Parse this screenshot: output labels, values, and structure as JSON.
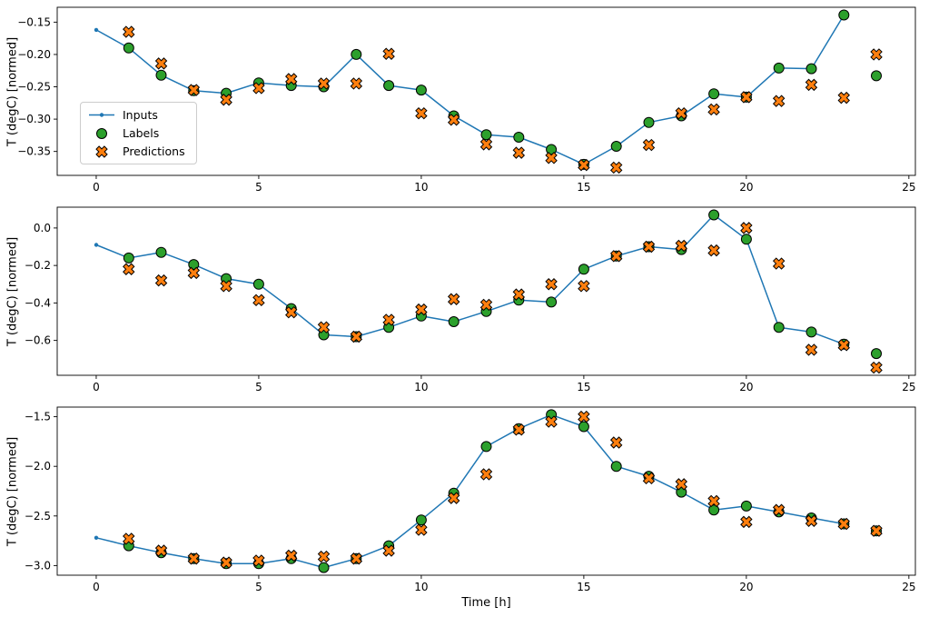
{
  "figure": {
    "xlabel": "Time [h]"
  },
  "legend": {
    "items": [
      {
        "label": "Inputs"
      },
      {
        "label": "Labels"
      },
      {
        "label": "Predictions"
      }
    ]
  },
  "chart_data": {
    "type": "line",
    "subtype": "line-with-scatter-overlays",
    "xlabel": "Time [h]",
    "legend_position": "center-left-of-first-subplot",
    "grid": false,
    "colors": {
      "inputs": "#1f77b4",
      "labels": "#2ca02c",
      "predictions": "#ff7f0e",
      "edge": "#000000"
    },
    "subplots": [
      {
        "ylabel": "T (degC) [normed]",
        "xlim": [
          -1.2,
          25.2
        ],
        "ylim": [
          -0.387,
          -0.127
        ],
        "xticks": [
          0,
          5,
          10,
          15,
          20,
          25
        ],
        "xtick_labels": [
          "0",
          "5",
          "10",
          "15",
          "20",
          "25"
        ],
        "yticks": [
          -0.15,
          -0.2,
          -0.25,
          -0.3,
          -0.35
        ],
        "ytick_labels": [
          "−0.15",
          "−0.20",
          "−0.25",
          "−0.30",
          "−0.35"
        ],
        "series": [
          {
            "name": "Inputs",
            "marker": "line-dot",
            "x": [
              0,
              1,
              2,
              3,
              4,
              5,
              6,
              7,
              8,
              9,
              10,
              11,
              12,
              13,
              14,
              15,
              16,
              17,
              18,
              19,
              20,
              21,
              22,
              23
            ],
            "y": [
              -0.162,
              -0.19,
              -0.232,
              -0.256,
              -0.26,
              -0.244,
              -0.248,
              -0.25,
              -0.2,
              -0.248,
              -0.255,
              -0.295,
              -0.324,
              -0.328,
              -0.347,
              -0.37,
              -0.342,
              -0.305,
              -0.295,
              -0.261,
              -0.266,
              -0.221,
              -0.222,
              -0.139
            ]
          },
          {
            "name": "Labels",
            "marker": "circle",
            "x": [
              1,
              2,
              3,
              4,
              5,
              6,
              7,
              8,
              9,
              10,
              11,
              12,
              13,
              14,
              15,
              16,
              17,
              18,
              19,
              20,
              21,
              22,
              23,
              24
            ],
            "y": [
              -0.19,
              -0.232,
              -0.256,
              -0.26,
              -0.244,
              -0.248,
              -0.25,
              -0.2,
              -0.248,
              -0.255,
              -0.295,
              -0.324,
              -0.328,
              -0.347,
              -0.37,
              -0.342,
              -0.305,
              -0.295,
              -0.261,
              -0.266,
              -0.221,
              -0.222,
              -0.139,
              -0.233
            ]
          },
          {
            "name": "Predictions",
            "marker": "X",
            "x": [
              1,
              2,
              3,
              4,
              5,
              6,
              7,
              8,
              9,
              10,
              11,
              12,
              13,
              14,
              15,
              16,
              17,
              18,
              19,
              20,
              21,
              22,
              23,
              24
            ],
            "y": [
              -0.165,
              -0.214,
              -0.255,
              -0.27,
              -0.252,
              -0.238,
              -0.245,
              -0.245,
              -0.199,
              -0.291,
              -0.301,
              -0.339,
              -0.352,
              -0.36,
              -0.371,
              -0.375,
              -0.34,
              -0.291,
              -0.285,
              -0.266,
              -0.272,
              -0.247,
              -0.267,
              -0.2
            ]
          }
        ]
      },
      {
        "ylabel": "T (degC) [normed]",
        "xlim": [
          -1.2,
          25.2
        ],
        "ylim": [
          -0.786,
          0.111
        ],
        "xticks": [
          0,
          5,
          10,
          15,
          20,
          25
        ],
        "xtick_labels": [
          "0",
          "5",
          "10",
          "15",
          "20",
          "25"
        ],
        "yticks": [
          0.0,
          -0.2,
          -0.4,
          -0.6
        ],
        "ytick_labels": [
          "0.0",
          "−0.2",
          "−0.4",
          "−0.6"
        ],
        "series": [
          {
            "name": "Inputs",
            "marker": "line-dot",
            "x": [
              0,
              1,
              2,
              3,
              4,
              5,
              6,
              7,
              8,
              9,
              10,
              11,
              12,
              13,
              14,
              15,
              16,
              17,
              18,
              19,
              20,
              21,
              22,
              23
            ],
            "y": [
              -0.09,
              -0.16,
              -0.13,
              -0.195,
              -0.27,
              -0.3,
              -0.43,
              -0.57,
              -0.58,
              -0.53,
              -0.47,
              -0.5,
              -0.445,
              -0.385,
              -0.395,
              -0.22,
              -0.15,
              -0.1,
              -0.115,
              0.07,
              -0.06,
              -0.53,
              -0.555,
              -0.62
            ]
          },
          {
            "name": "Labels",
            "marker": "circle",
            "x": [
              1,
              2,
              3,
              4,
              5,
              6,
              7,
              8,
              9,
              10,
              11,
              12,
              13,
              14,
              15,
              16,
              17,
              18,
              19,
              20,
              21,
              22,
              23,
              24
            ],
            "y": [
              -0.16,
              -0.13,
              -0.195,
              -0.27,
              -0.3,
              -0.43,
              -0.57,
              -0.58,
              -0.53,
              -0.47,
              -0.5,
              -0.445,
              -0.385,
              -0.395,
              -0.22,
              -0.15,
              -0.1,
              -0.115,
              0.07,
              -0.06,
              -0.53,
              -0.555,
              -0.62,
              -0.67
            ]
          },
          {
            "name": "Predictions",
            "marker": "X",
            "x": [
              1,
              2,
              3,
              4,
              5,
              6,
              7,
              8,
              9,
              10,
              11,
              12,
              13,
              14,
              15,
              16,
              17,
              18,
              19,
              20,
              21,
              22,
              23,
              24
            ],
            "y": [
              -0.22,
              -0.28,
              -0.24,
              -0.31,
              -0.385,
              -0.45,
              -0.53,
              -0.58,
              -0.49,
              -0.435,
              -0.38,
              -0.41,
              -0.355,
              -0.3,
              -0.31,
              -0.15,
              -0.1,
              -0.095,
              -0.12,
              0.0,
              -0.19,
              -0.65,
              -0.625,
              -0.745
            ]
          }
        ]
      },
      {
        "ylabel": "T (degC) [normed]",
        "xlim": [
          -1.2,
          25.2
        ],
        "ylim": [
          -3.097,
          -1.403
        ],
        "xticks": [
          0,
          5,
          10,
          15,
          20,
          25
        ],
        "xtick_labels": [
          "0",
          "5",
          "10",
          "15",
          "20",
          "25"
        ],
        "yticks": [
          -1.5,
          -2.0,
          -2.5,
          -3.0
        ],
        "ytick_labels": [
          "−1.5",
          "−2.0",
          "−2.5",
          "−3.0"
        ],
        "series": [
          {
            "name": "Inputs",
            "marker": "line-dot",
            "x": [
              0,
              1,
              2,
              3,
              4,
              5,
              6,
              7,
              8,
              9,
              10,
              11,
              12,
              13,
              14,
              15,
              16,
              17,
              18,
              19,
              20,
              21,
              22,
              23
            ],
            "y": [
              -2.72,
              -2.8,
              -2.87,
              -2.93,
              -2.98,
              -2.98,
              -2.93,
              -3.02,
              -2.93,
              -2.8,
              -2.54,
              -2.27,
              -1.8,
              -1.62,
              -1.48,
              -1.6,
              -2.0,
              -2.1,
              -2.26,
              -2.44,
              -2.4,
              -2.46,
              -2.52,
              -2.58
            ]
          },
          {
            "name": "Labels",
            "marker": "circle",
            "x": [
              1,
              2,
              3,
              4,
              5,
              6,
              7,
              8,
              9,
              10,
              11,
              12,
              13,
              14,
              15,
              16,
              17,
              18,
              19,
              20,
              21,
              22,
              23,
              24
            ],
            "y": [
              -2.8,
              -2.87,
              -2.93,
              -2.98,
              -2.98,
              -2.93,
              -3.02,
              -2.93,
              -2.8,
              -2.54,
              -2.27,
              -1.8,
              -1.62,
              -1.48,
              -1.6,
              -2.0,
              -2.1,
              -2.26,
              -2.44,
              -2.4,
              -2.46,
              -2.52,
              -2.58,
              -2.65
            ]
          },
          {
            "name": "Predictions",
            "marker": "X",
            "x": [
              1,
              2,
              3,
              4,
              5,
              6,
              7,
              8,
              9,
              10,
              11,
              12,
              13,
              14,
              15,
              16,
              17,
              18,
              19,
              20,
              21,
              22,
              23,
              24
            ],
            "y": [
              -2.73,
              -2.85,
              -2.93,
              -2.97,
              -2.95,
              -2.9,
              -2.91,
              -2.93,
              -2.85,
              -2.64,
              -2.32,
              -2.08,
              -1.63,
              -1.55,
              -1.5,
              -1.76,
              -2.12,
              -2.18,
              -2.35,
              -2.56,
              -2.44,
              -2.55,
              -2.58,
              -2.65
            ]
          }
        ]
      }
    ]
  }
}
